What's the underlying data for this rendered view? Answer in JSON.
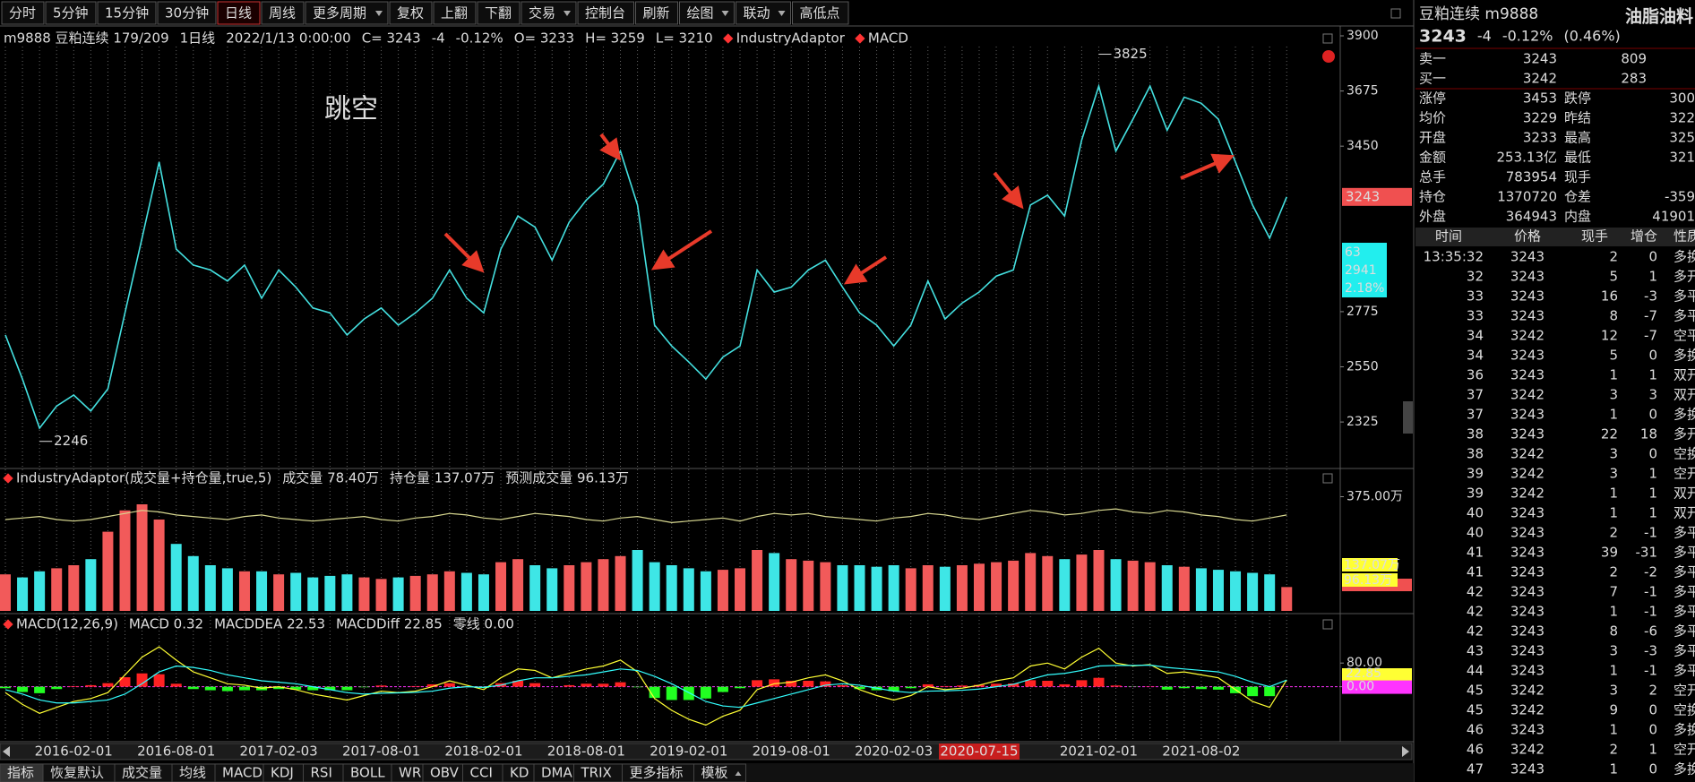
{
  "toolbar": {
    "items": [
      {
        "text": "分时"
      },
      {
        "text": "5分钟"
      },
      {
        "text": "15分钟"
      },
      {
        "text": "30分钟"
      },
      {
        "text": "日线",
        "active": true
      },
      {
        "text": "周线"
      },
      {
        "text": "更多周期",
        "dropdown": true
      },
      {
        "text": "复权"
      },
      {
        "text": "上翻"
      },
      {
        "text": "下翻"
      },
      {
        "text": "交易",
        "dropdown": true
      },
      {
        "text": "控制台"
      },
      {
        "text": "刷新"
      },
      {
        "text": "绘图",
        "dropdown": true
      },
      {
        "text": "联动",
        "dropdown": true
      },
      {
        "text": "高低点"
      }
    ]
  },
  "chart_data": [
    {
      "type": "line",
      "header": [
        {
          "text": "m9888 豆粕连续 179/209",
          "color": "#ffffff"
        },
        {
          "text": "1日线",
          "color": "#33ffff"
        },
        {
          "text": "2022/1/13 0:00:00",
          "color": "#ffff33"
        },
        {
          "text": "C= 3243",
          "color": "#33ff33"
        },
        {
          "text": "-4",
          "color": "#33ff33"
        },
        {
          "text": "-0.12%",
          "color": "#33ff33"
        },
        {
          "text": "O= 3233",
          "color": "#ffffff"
        },
        {
          "text": "H= 3259",
          "color": "#ffffff"
        },
        {
          "text": "L= 3210",
          "color": "#ffffff"
        },
        {
          "text": "IndustryAdaptor",
          "color": "#ffffff",
          "marker": true
        },
        {
          "text": "MACD",
          "color": "#ffffff",
          "marker": true
        }
      ],
      "annotations": [
        {
          "text": "跳空"
        }
      ],
      "categories": [
        null,
        null,
        null,
        null,
        "2016-02-01",
        null,
        null,
        null,
        null,
        null,
        "2016-08-01",
        null,
        null,
        null,
        null,
        null,
        "2017-02-03",
        null,
        null,
        null,
        null,
        null,
        "2017-08-01",
        null,
        null,
        null,
        null,
        null,
        "2018-02-01",
        null,
        null,
        null,
        null,
        null,
        "2018-08-01",
        null,
        null,
        null,
        null,
        null,
        "2019-02-01",
        null,
        null,
        null,
        null,
        null,
        "2019-08-01",
        null,
        null,
        null,
        null,
        null,
        "2020-02-03",
        null,
        null,
        null,
        null,
        null,
        null,
        null,
        null,
        null,
        null,
        null,
        "2021-02-01",
        null,
        null,
        null,
        null,
        null,
        "2021-08-02",
        null,
        null,
        null,
        null,
        null
      ],
      "cursor_date": "2020-07-15",
      "series": [
        {
          "color": "#44e0e0",
          "values": [
            2680,
            2500,
            2300,
            2390,
            2435,
            2370,
            2460,
            2770,
            3075,
            3385,
            3030,
            2965,
            2945,
            2900,
            2965,
            2830,
            2945,
            2875,
            2790,
            2770,
            2680,
            2745,
            2790,
            2720,
            2770,
            2830,
            2945,
            2830,
            2770,
            3030,
            3165,
            3120,
            2985,
            3140,
            3230,
            3295,
            3430,
            3210,
            2720,
            2635,
            2570,
            2500,
            2590,
            2635,
            2945,
            2855,
            2875,
            2945,
            2985,
            2875,
            2770,
            2720,
            2635,
            2720,
            2900,
            2745,
            2810,
            2855,
            2920,
            2945,
            3210,
            3250,
            3165,
            3475,
            3695,
            3430,
            3560,
            3695,
            3515,
            3650,
            3625,
            3560,
            3385,
            3210,
            3075,
            3243
          ]
        }
      ],
      "extremes": [
        {
          "index": 64,
          "value": 3825
        },
        {
          "index": 2,
          "value": 2246
        }
      ],
      "cursor_box": [
        "63",
        "2941",
        "2.18%"
      ],
      "ylim": [
        2150,
        3900
      ],
      "yticks": [
        2325,
        2550,
        2775,
        3450,
        3675,
        3900
      ]
    },
    {
      "type": "bar",
      "header": [
        {
          "text": "IndustryAdaptor(成交量+持仓量,true,5)",
          "color": "#ffffff",
          "marker": true
        },
        {
          "text": "成交量 78.40万",
          "color": "#ff4444"
        },
        {
          "text": "持仓量 137.07万",
          "color": "#ffff33"
        },
        {
          "text": "预测成交量 96.13万",
          "color": "#ffff33"
        }
      ],
      "values": [
        120,
        110,
        130,
        140,
        150,
        170,
        260,
        330,
        350,
        300,
        220,
        180,
        150,
        140,
        130,
        130,
        120,
        125,
        110,
        115,
        120,
        110,
        105,
        110,
        115,
        120,
        130,
        125,
        120,
        160,
        170,
        150,
        140,
        150,
        160,
        170,
        180,
        200,
        160,
        150,
        140,
        130,
        135,
        140,
        200,
        190,
        170,
        165,
        160,
        150,
        150,
        145,
        150,
        140,
        150,
        145,
        150,
        155,
        160,
        165,
        190,
        180,
        170,
        185,
        200,
        170,
        165,
        160,
        150,
        145,
        140,
        135,
        130,
        125,
        120,
        78.4
      ],
      "line_values": [
        300,
        305,
        310,
        300,
        295,
        300,
        310,
        320,
        330,
        325,
        315,
        310,
        305,
        300,
        310,
        315,
        305,
        300,
        295,
        300,
        305,
        310,
        300,
        295,
        305,
        310,
        320,
        315,
        305,
        300,
        310,
        320,
        315,
        310,
        300,
        295,
        305,
        310,
        300,
        290,
        295,
        300,
        305,
        295,
        310,
        320,
        315,
        320,
        310,
        305,
        300,
        295,
        305,
        310,
        320,
        315,
        305,
        300,
        310,
        320,
        330,
        325,
        315,
        320,
        330,
        335,
        325,
        320,
        330,
        325,
        315,
        310,
        300,
        295,
        305,
        315
      ],
      "line_color": "#d8d890",
      "up_color": "#f25a5a",
      "down_color": "#3ee6e6",
      "axis_boxes": [
        {
          "text": "137.07万",
          "color": "#ffff33"
        },
        {
          "text": "96.13万",
          "color": "#ffff33"
        }
      ],
      "ylim": [
        0,
        400
      ],
      "yticks": [
        {
          "value": 375,
          "label": "375.00万"
        }
      ]
    },
    {
      "type": "macd",
      "header": [
        {
          "text": "MACD(12,26,9)",
          "color": "#ffffff",
          "marker": true
        },
        {
          "text": "MACD 0.32",
          "color": "#ffffff"
        },
        {
          "text": "MACDDEA 22.53",
          "color": "#33ffff"
        },
        {
          "text": "MACDDiff 22.85",
          "color": "#ffff33"
        },
        {
          "text": "零线 0.00",
          "color": "#ff33ff"
        }
      ],
      "values": [
        -5,
        -18,
        -22,
        -8,
        2,
        5,
        12,
        32,
        45,
        42,
        10,
        -8,
        -12,
        -15,
        -12,
        -12,
        -8,
        -10,
        -12,
        -12,
        -12,
        -2,
        4,
        0,
        2,
        8,
        12,
        2,
        -4,
        12,
        20,
        12,
        0,
        5,
        10,
        10,
        15,
        -2,
        -38,
        -45,
        -45,
        -40,
        -18,
        -5,
        22,
        25,
        20,
        20,
        18,
        5,
        -8,
        -12,
        -15,
        -5,
        8,
        2,
        4,
        6,
        10,
        11,
        22,
        20,
        8,
        22,
        30,
        4,
        -1,
        1,
        -10,
        -5,
        -8,
        -10,
        -22,
        -32,
        -32,
        0.32
      ],
      "diff": [
        -20,
        -60,
        -90,
        -70,
        -50,
        -40,
        -20,
        40,
        100,
        135,
        90,
        50,
        30,
        10,
        5,
        -5,
        0,
        -10,
        -25,
        -35,
        -45,
        -30,
        -15,
        -20,
        -15,
        0,
        20,
        5,
        -10,
        30,
        60,
        55,
        30,
        45,
        60,
        70,
        90,
        50,
        -40,
        -80,
        -110,
        -130,
        -100,
        -80,
        -10,
        10,
        15,
        30,
        40,
        20,
        -10,
        -30,
        -45,
        -30,
        0,
        -10,
        -5,
        5,
        20,
        30,
        70,
        80,
        60,
        100,
        130,
        80,
        70,
        75,
        45,
        50,
        40,
        30,
        -10,
        -50,
        -70,
        22.85
      ],
      "dea": [
        -10,
        -25,
        -45,
        -55,
        -55,
        -50,
        -45,
        -25,
        10,
        50,
        70,
        65,
        55,
        40,
        30,
        20,
        15,
        10,
        0,
        -10,
        -20,
        -25,
        -22,
        -21,
        -19,
        -15,
        -5,
        0,
        -2,
        5,
        20,
        30,
        30,
        35,
        40,
        50,
        60,
        55,
        35,
        10,
        -20,
        -50,
        -65,
        -70,
        -55,
        -40,
        -25,
        -10,
        5,
        10,
        5,
        -5,
        -15,
        -20,
        -15,
        -14,
        -12,
        -8,
        0,
        8,
        25,
        40,
        45,
        55,
        70,
        72,
        72,
        73,
        65,
        60,
        55,
        50,
        35,
        15,
        0,
        22.53
      ],
      "diff_color": "#ffff33",
      "dea_color": "#33ffff",
      "up_color": "#ff2222",
      "down_color": "#22ff22",
      "zero_color": "#ff33ff",
      "axis_boxes": [
        {
          "text": "22.85",
          "color": "#ffff33"
        }
      ],
      "ylim": [
        -180,
        220
      ],
      "yticks": [
        {
          "value": 80,
          "label": "80.00"
        },
        {
          "value": 0,
          "label": "0.00"
        }
      ]
    }
  ],
  "quote_panel": {
    "name": "豆粕连续 m9888",
    "sector": "油脂油料",
    "price": 3243,
    "change": -4,
    "change_pct": "-0.12%",
    "extra": "(0.46%)",
    "book": [
      [
        "卖一",
        3243,
        809
      ],
      [
        "买一",
        3242,
        283
      ]
    ],
    "stats": [
      {
        "label": "涨停",
        "value": 3453,
        "color": "#ff4444"
      },
      {
        "label": "跌停",
        "value": 300,
        "color": "#33ff33"
      },
      {
        "label": "均价",
        "value": 3229,
        "color": "#ff4444"
      },
      {
        "label": "昨结",
        "value": 322,
        "color": "#ff4444"
      },
      {
        "label": "开盘",
        "value": 3233,
        "color": "#ff4444"
      },
      {
        "label": "最高",
        "value": 325,
        "color": "#ff4444"
      },
      {
        "label": "金额",
        "value": "253.13亿",
        "color": "#ffff33"
      },
      {
        "label": "最低",
        "value": 321,
        "color": "#ff4444"
      },
      {
        "label": "总手",
        "value": 783954,
        "color": "#ffff33"
      },
      {
        "label": "现手"
      },
      {
        "label": "持仓",
        "value": 1370720,
        "color": "#ffff33"
      },
      {
        "label": "仓差",
        "value": -359,
        "color": "#33ff33"
      },
      {
        "label": "外盘",
        "value": 364943,
        "color": "#ffff33"
      },
      {
        "label": "内盘",
        "value": 41901,
        "color": "#ff4444"
      }
    ],
    "trades": {
      "header": [
        "时间",
        "价格",
        "现手",
        "增仓",
        "性质"
      ],
      "rows": [
        [
          "13:35:32",
          3243,
          2,
          0,
          "多换"
        ],
        [
          "32",
          3243,
          5,
          1,
          "多开"
        ],
        [
          "33",
          3243,
          16,
          -3,
          "多平"
        ],
        [
          "33",
          3243,
          8,
          -7,
          "多平"
        ],
        [
          "34",
          3242,
          12,
          -7,
          "空平"
        ],
        [
          "34",
          3243,
          5,
          0,
          "多换"
        ],
        [
          "36",
          3243,
          1,
          1,
          "双开"
        ],
        [
          "37",
          3242,
          3,
          3,
          "双开"
        ],
        [
          "37",
          3243,
          1,
          0,
          "多换"
        ],
        [
          "38",
          3243,
          22,
          18,
          "多开"
        ],
        [
          "38",
          3242,
          3,
          0,
          "空换"
        ],
        [
          "39",
          3242,
          3,
          1,
          "空开"
        ],
        [
          "39",
          3242,
          1,
          1,
          "双开"
        ],
        [
          "40",
          3243,
          1,
          1,
          "双开"
        ],
        [
          "40",
          3243,
          2,
          -1,
          "多平"
        ],
        [
          "41",
          3243,
          39,
          -31,
          "多平"
        ],
        [
          "41",
          3243,
          2,
          -2,
          "多平"
        ],
        [
          "42",
          3243,
          7,
          -1,
          "多平"
        ],
        [
          "42",
          3243,
          1,
          -1,
          "多平"
        ],
        [
          "42",
          3243,
          8,
          -6,
          "多平"
        ],
        [
          "43",
          3243,
          3,
          -3,
          "多平"
        ],
        [
          "44",
          3243,
          1,
          -1,
          "多平"
        ],
        [
          "45",
          3242,
          3,
          2,
          "空开"
        ],
        [
          "45",
          3242,
          9,
          0,
          "空换"
        ],
        [
          "46",
          3243,
          1,
          0,
          "多换"
        ],
        [
          "46",
          3242,
          2,
          1,
          "空开"
        ],
        [
          "47",
          3243,
          1,
          0,
          "多换"
        ]
      ]
    }
  },
  "bottom_tabs": {
    "items": [
      {
        "text": "指标",
        "color": "#dddddd",
        "active": true
      },
      {
        "text": "恢复默认",
        "color": "#dddddd"
      },
      {
        "text": "成交量",
        "color": "#dddddd"
      },
      {
        "text": "均线",
        "color": "#ffff33"
      },
      {
        "text": "MACD",
        "color": "#ffff33"
      },
      {
        "text": "KDJ",
        "color": "#dddddd"
      },
      {
        "text": "RSI",
        "color": "#dddddd"
      },
      {
        "text": "BOLL",
        "color": "#dddddd"
      },
      {
        "text": "WR",
        "color": "#dddddd"
      },
      {
        "text": "OBV",
        "color": "#dddddd"
      },
      {
        "text": "CCI",
        "color": "#dddddd"
      },
      {
        "text": "KD",
        "color": "#dddddd"
      },
      {
        "text": "DMA",
        "color": "#dddddd"
      },
      {
        "text": "TRIX",
        "color": "#dddddd"
      },
      {
        "text": "更多指标",
        "color": "#dddddd"
      },
      {
        "text": "模板",
        "color": "#dddddd",
        "dropdown": true
      }
    ]
  }
}
